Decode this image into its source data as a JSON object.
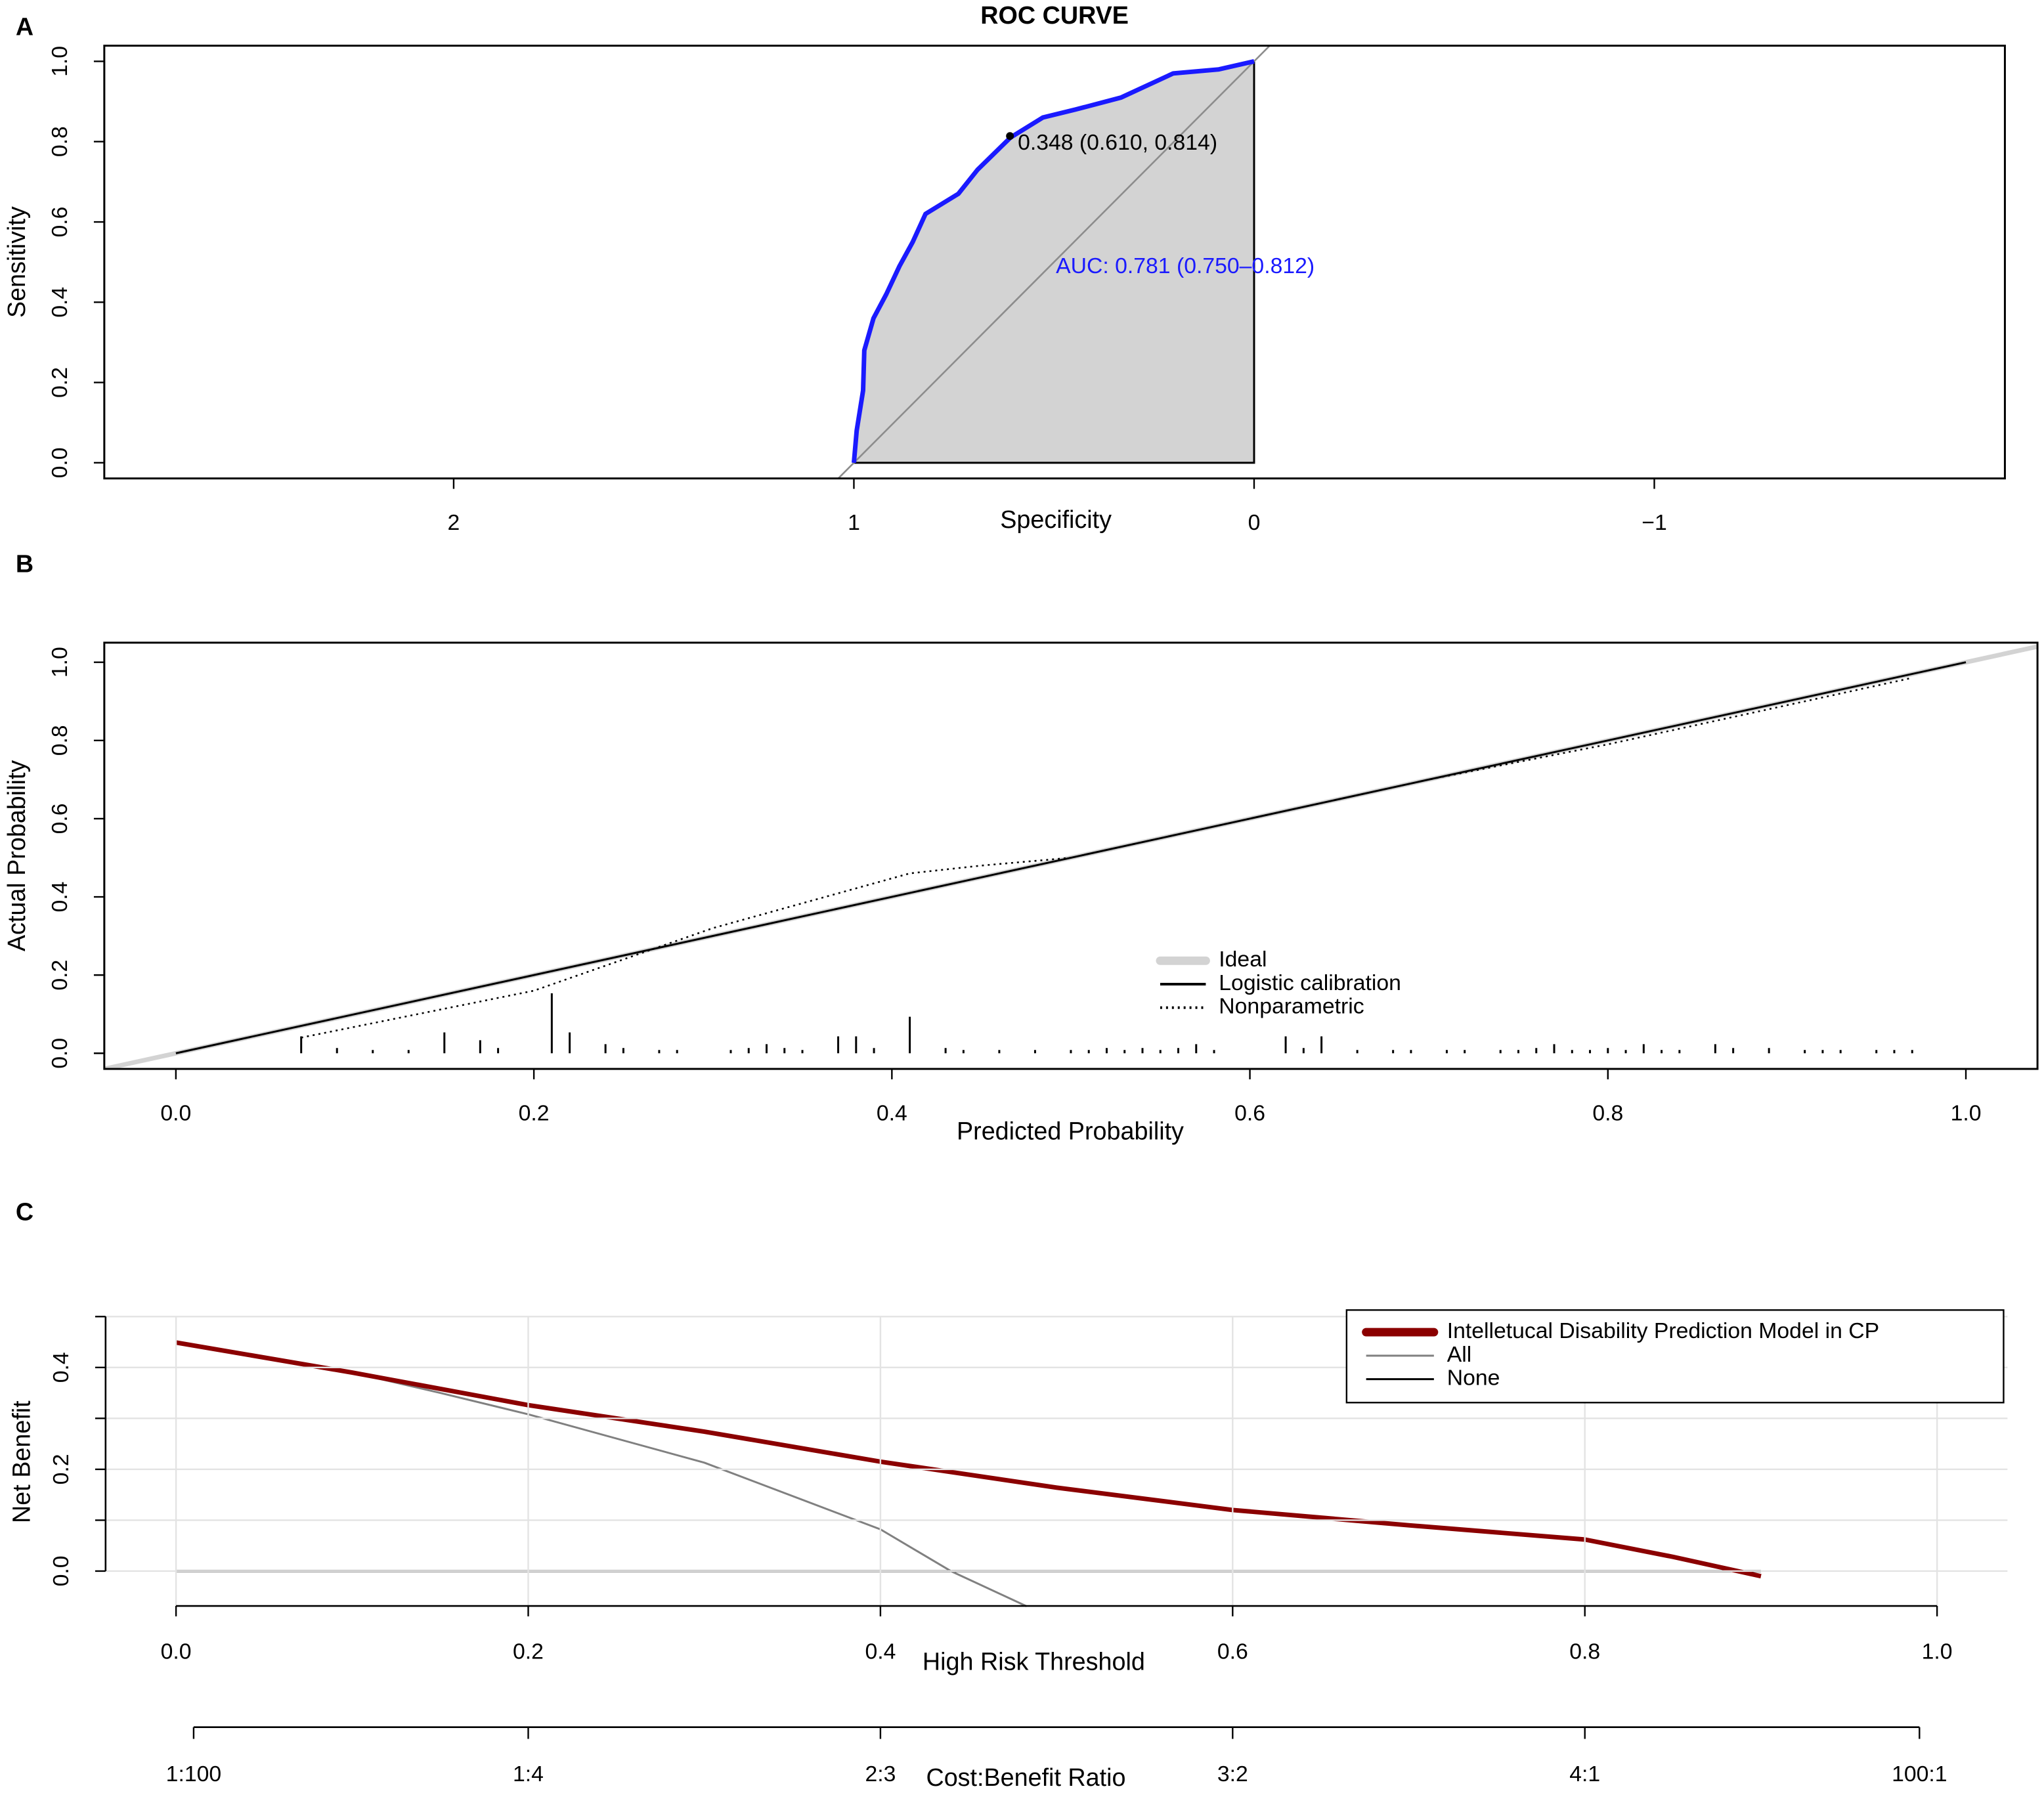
{
  "chart_data": [
    {
      "type": "roc",
      "panel_label": "A",
      "title": "ROC CURVE",
      "x_label": "Specificity",
      "y_label": "Sensitivity",
      "xlim": [
        2.873,
        -1.876
      ],
      "ylim": [
        -0.039,
        1.039
      ],
      "xticks": [
        2,
        1,
        0,
        {
          "value": -1,
          "label": "−1"
        }
      ],
      "yticks": [
        {
          "value": 0,
          "label": "0.0"
        },
        0.2,
        0.4,
        0.6,
        0.8,
        {
          "value": 1,
          "label": "1.0"
        }
      ],
      "color": "#1a1aff",
      "fill_color": "#d3d3d3",
      "diagonal_color": "#8c8c8c",
      "x": [
        1,
        0.993,
        0.977,
        0.974,
        0.951,
        0.919,
        0.886,
        0.853,
        0.821,
        0.739,
        0.691,
        0.609,
        0.528,
        0.446,
        0.332,
        0.202,
        0.088,
        0
      ],
      "values": [
        0,
        0.08,
        0.18,
        0.28,
        0.36,
        0.42,
        0.49,
        0.55,
        0.62,
        0.67,
        0.73,
        0.81,
        0.86,
        0.88,
        0.91,
        0.97,
        0.98,
        1
      ],
      "cutoff_label": "0.348 (0.610, 0.814)",
      "cutoff_x": 0.61,
      "cutoff_y": 0.814,
      "auc_label": "AUC: 0.781 (0.750–0.812)"
    },
    {
      "type": "calibration",
      "panel_label": "B",
      "x_label": "Predicted Probability",
      "y_label": "Actual Probability",
      "xlim": [
        -0.04,
        1.04
      ],
      "ylim": [
        -0.04,
        1.05
      ],
      "xticks": [
        {
          "value": 0,
          "label": "0.0"
        },
        0.2,
        0.4,
        0.6,
        0.8,
        {
          "value": 1,
          "label": "1.0"
        }
      ],
      "yticks": [
        {
          "value": 0,
          "label": "0.0"
        },
        0.2,
        0.4,
        0.6,
        0.8,
        {
          "value": 1,
          "label": "1.0"
        }
      ],
      "legend": "right",
      "series": [
        {
          "name": "Ideal",
          "color": "#d3d3d3",
          "line_style": "thick",
          "x": [
            -0.04,
            1.04
          ],
          "values": [
            -0.04,
            1.04
          ]
        },
        {
          "name": "Logistic calibration",
          "color": "#000000",
          "line_style": "solid",
          "x": [
            0,
            1
          ],
          "values": [
            0,
            1
          ]
        },
        {
          "name": "Nonparametric",
          "color": "#000000",
          "line_style": "dotted",
          "x": [
            0.07,
            0.2,
            0.3,
            0.41,
            0.45,
            0.5,
            0.6,
            0.7,
            0.8,
            0.9,
            0.97
          ],
          "values": [
            0.04,
            0.16,
            0.32,
            0.46,
            0.48,
            0.5,
            0.6,
            0.7,
            0.79,
            0.89,
            0.96
          ]
        }
      ],
      "rug": {
        "color": "#000000",
        "x": [
          0.07,
          0.09,
          0.11,
          0.13,
          0.15,
          0.17,
          0.18,
          0.21,
          0.22,
          0.24,
          0.25,
          0.27,
          0.28,
          0.31,
          0.32,
          0.33,
          0.34,
          0.35,
          0.37,
          0.38,
          0.39,
          0.41,
          0.43,
          0.44,
          0.46,
          0.48,
          0.5,
          0.51,
          0.52,
          0.53,
          0.54,
          0.55,
          0.56,
          0.57,
          0.58,
          0.62,
          0.63,
          0.64,
          0.66,
          0.68,
          0.69,
          0.71,
          0.72,
          0.74,
          0.75,
          0.76,
          0.77,
          0.78,
          0.79,
          0.8,
          0.81,
          0.82,
          0.83,
          0.84,
          0.86,
          0.87,
          0.89,
          0.91,
          0.92,
          0.93,
          0.95,
          0.96,
          0.97
        ],
        "values": [
          0.04,
          0.01,
          0.005,
          0.005,
          0.05,
          0.03,
          0.01,
          0.15,
          0.05,
          0.02,
          0.01,
          0.005,
          0.005,
          0.005,
          0.01,
          0.02,
          0.01,
          0.005,
          0.04,
          0.04,
          0.01,
          0.09,
          0.01,
          0.005,
          0.005,
          0.005,
          0.005,
          0.005,
          0.01,
          0.005,
          0.01,
          0.005,
          0.01,
          0.02,
          0.005,
          0.04,
          0.01,
          0.04,
          0.005,
          0.005,
          0.005,
          0.005,
          0.005,
          0.005,
          0.005,
          0.01,
          0.02,
          0.005,
          0.005,
          0.01,
          0.005,
          0.02,
          0.005,
          0.005,
          0.02,
          0.01,
          0.01,
          0.005,
          0.005,
          0.005,
          0.005,
          0.005,
          0.005
        ]
      }
    },
    {
      "type": "decision_curve",
      "panel_label": "C",
      "x_label": "High Risk Threshold",
      "y_label": "Net Benefit",
      "x2_label": "Cost:Benefit Ratio",
      "xlim": [
        -0.04,
        1.04
      ],
      "ylim": [
        -0.071,
        0.5
      ],
      "xticks": [
        {
          "value": 0,
          "label": "0.0"
        },
        0.2,
        0.4,
        0.6,
        0.8,
        {
          "value": 1,
          "label": "1.0"
        }
      ],
      "yticks": [
        {
          "value": 0,
          "label": "0.0"
        },
        0.2,
        0.4
      ],
      "minor_yticks": [
        0.1,
        0.3,
        0.5
      ],
      "x2ticks": [
        {
          "value": 0.01,
          "label": "1:100"
        },
        {
          "value": 0.2,
          "label": "1:4"
        },
        {
          "value": 0.4,
          "label": "2:3"
        },
        {
          "value": 0.6,
          "label": "3:2"
        },
        {
          "value": 0.8,
          "label": "4:1"
        },
        {
          "value": 0.99,
          "label": "100:1"
        }
      ],
      "grid": true,
      "grid_color": "#e3e3e3",
      "legend": "top-right",
      "series": [
        {
          "name": "Intelletucal Disability Prediction Model in CP",
          "color": "#8b0000",
          "line_style": "thick",
          "x": [
            0,
            0.1,
            0.2,
            0.3,
            0.4,
            0.5,
            0.6,
            0.7,
            0.8,
            0.85,
            0.9
          ],
          "values": [
            0.449,
            0.39,
            0.326,
            0.274,
            0.215,
            0.164,
            0.12,
            0.09,
            0.062,
            0.028,
            -0.01
          ]
        },
        {
          "name": "All",
          "color": "#808080",
          "line_style": "solid",
          "x": [
            0,
            0.1,
            0.15,
            0.2,
            0.3,
            0.4,
            0.44,
            0.483
          ],
          "values": [
            0.449,
            0.39,
            0.35,
            0.308,
            0.213,
            0.082,
            0,
            -0.069
          ]
        },
        {
          "name": "None",
          "color": "#000000",
          "line_style": "solid",
          "x": [
            0,
            0.9
          ],
          "values": [
            0,
            0
          ]
        }
      ]
    }
  ]
}
